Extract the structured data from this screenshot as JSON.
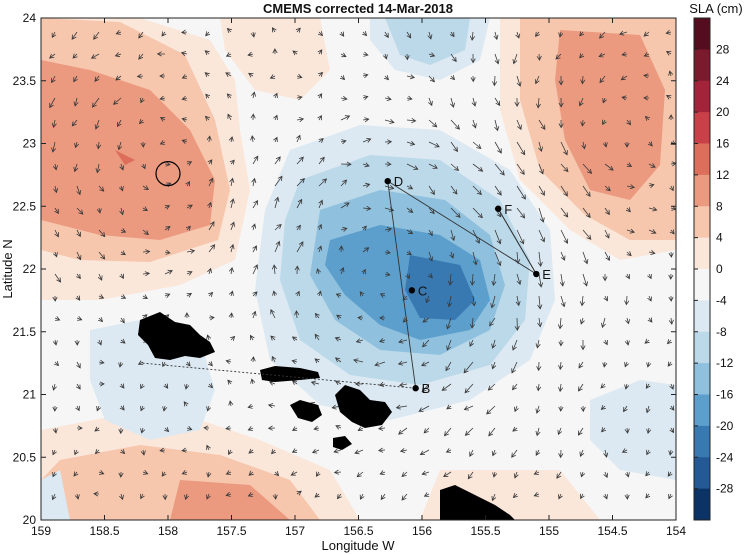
{
  "map": {
    "title": "CMEMS corrected 14-Mar-2018",
    "xlabel": "Longitude W",
    "ylabel": "Latitude N",
    "x_ticks": [
      "159",
      "158.5",
      "158",
      "157.5",
      "157",
      "156.5",
      "156",
      "155.5",
      "155",
      "154.5",
      "154"
    ],
    "y_ticks": [
      "24",
      "23.5",
      "23",
      "22.5",
      "22",
      "21.5",
      "21",
      "20.5",
      "20"
    ],
    "colorbar": {
      "label": "SLA (cm)",
      "ticks": [
        "28",
        "24",
        "20",
        "16",
        "12",
        "8",
        "4",
        "0",
        "-4",
        "-8",
        "-12",
        "-16",
        "-20",
        "-24",
        "-28"
      ],
      "colors": [
        "#530d1f",
        "#7b1a2d",
        "#a3233a",
        "#c94048",
        "#dd6e5b",
        "#eb9a80",
        "#f6c6ad",
        "#fbe6da",
        "#f6f6f6",
        "#dce9f2",
        "#bcd9ea",
        "#8fc1de",
        "#5c9fcd",
        "#3979b2",
        "#235a96",
        "#0b3366"
      ]
    },
    "stations": [
      {
        "name": "B",
        "lon": 156.05,
        "lat": 21.05
      },
      {
        "name": "C",
        "lon": 156.08,
        "lat": 21.83
      },
      {
        "name": "D",
        "lon": 156.27,
        "lat": 22.7
      },
      {
        "name": "E",
        "lon": 155.1,
        "lat": 21.96
      },
      {
        "name": "F",
        "lon": 155.4,
        "lat": 22.48
      }
    ],
    "track_start": {
      "lon": 158.2,
      "lat": 21.25
    },
    "circle_marker": {
      "lon": 158.0,
      "lat": 22.76
    }
  }
}
